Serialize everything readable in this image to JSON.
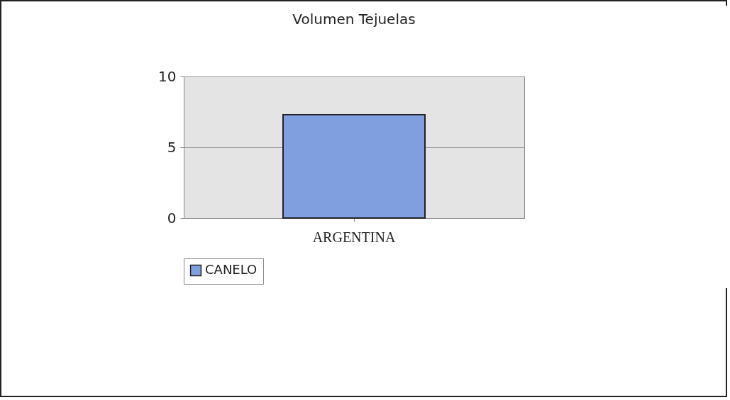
{
  "chart_data": {
    "type": "bar",
    "title": "Volumen Tejuelas",
    "categories": [
      "ARGENTINA"
    ],
    "series": [
      {
        "name": "CANELO",
        "color": "#7f9fdf",
        "values": [
          7.3
        ]
      }
    ],
    "ylim": [
      0,
      10
    ],
    "yticks": [
      0,
      5,
      10
    ],
    "grid": "y",
    "legend": "bottom"
  }
}
